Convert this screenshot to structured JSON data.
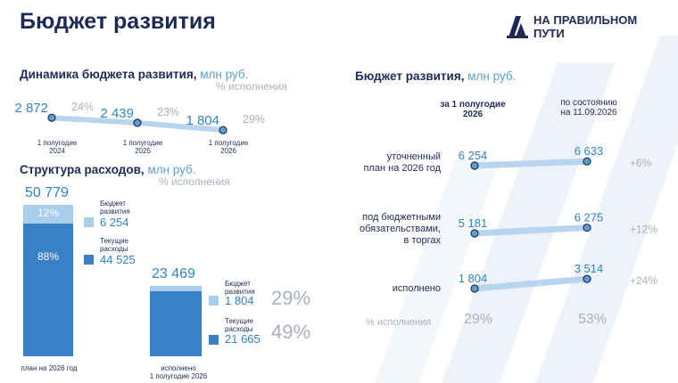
{
  "title": "Бюджет развития",
  "logo": {
    "text_line1": "НА ПРАВИЛЬНОМ",
    "text_line2": "ПУТИ"
  },
  "dynamics": {
    "title": "Динамика бюджета развития,",
    "unit": "млн руб.",
    "pct_note": "% исполнения"
  },
  "structure": {
    "title": "Структура расходов,",
    "unit": "млн руб.",
    "pct_note": "% исполнения"
  },
  "right": {
    "title": "Бюджет развития,",
    "unit": "млн руб.",
    "col1": "за 1 полугодие 2026",
    "col1_l1": "за 1 полугодие",
    "col1_l2": "2026",
    "col2_l1": "по состоянию",
    "col2_l2": "на 11.09.2026",
    "pct_label": "% исполнения",
    "pct_col1": "29%",
    "pct_col2": "53%"
  },
  "chart_data": [
    {
      "type": "line",
      "title": "Динамика бюджета развития, млн руб.",
      "categories": [
        "1 полугодие 2024",
        "1 полугодие 2025",
        "1 полугодие 2026"
      ],
      "category_lines": [
        [
          "1 полугодие",
          "2024"
        ],
        [
          "1 полугодие",
          "2025"
        ],
        [
          "1 полугодие",
          "2026"
        ]
      ],
      "values": [
        2872,
        2439,
        1804
      ],
      "value_labels": [
        "2 872",
        "2 439",
        "1 804"
      ],
      "pct_labels": [
        "24%",
        "23%",
        "29%"
      ]
    },
    {
      "type": "bar",
      "title": "Структура расходов, млн руб.",
      "categories": [
        "план на 2026 год",
        "исполнено 1 полугодие 2026"
      ],
      "cat2_lines": [
        "исполнено",
        "1 полугодие 2026"
      ],
      "totals": [
        50779,
        23469
      ],
      "total_labels": [
        "50 779",
        "23 469"
      ],
      "series": [
        {
          "name": "Бюджет развития",
          "name_lines": [
            "Бюджет",
            "развития"
          ],
          "values": [
            6254,
            1804
          ],
          "value_labels": [
            "6 254",
            "1 804"
          ],
          "color": "#a9cdec"
        },
        {
          "name": "Текущие расходы",
          "name_lines": [
            "Текущие",
            "расходы"
          ],
          "values": [
            44525,
            21665
          ],
          "value_labels": [
            "44 525",
            "21 665"
          ],
          "color": "#3a80c6"
        }
      ],
      "share_labels": [
        "12%",
        "88%"
      ],
      "exec_pct": [
        "29%",
        "49%"
      ]
    },
    {
      "type": "line",
      "title": "Бюджет развития, млн руб.",
      "x": [
        "за 1 полугодие 2026",
        "по состоянию на 11.09.2026"
      ],
      "rows": [
        {
          "label_lines": [
            "уточненный",
            "план на 2026 год"
          ],
          "values": [
            6254,
            6633
          ],
          "value_labels": [
            "6 254",
            "6 633"
          ],
          "change": "+6%"
        },
        {
          "label_lines": [
            "под бюджетными",
            "обязательствами,",
            "в торгах"
          ],
          "values": [
            5181,
            6275
          ],
          "value_labels": [
            "5 181",
            "6 275"
          ],
          "change": "+12%"
        },
        {
          "label_lines": [
            "исполнено"
          ],
          "values": [
            1804,
            3514
          ],
          "value_labels": [
            "1 804",
            "3 514"
          ],
          "change": "+24%"
        }
      ],
      "color": "#3a80c6"
    }
  ]
}
